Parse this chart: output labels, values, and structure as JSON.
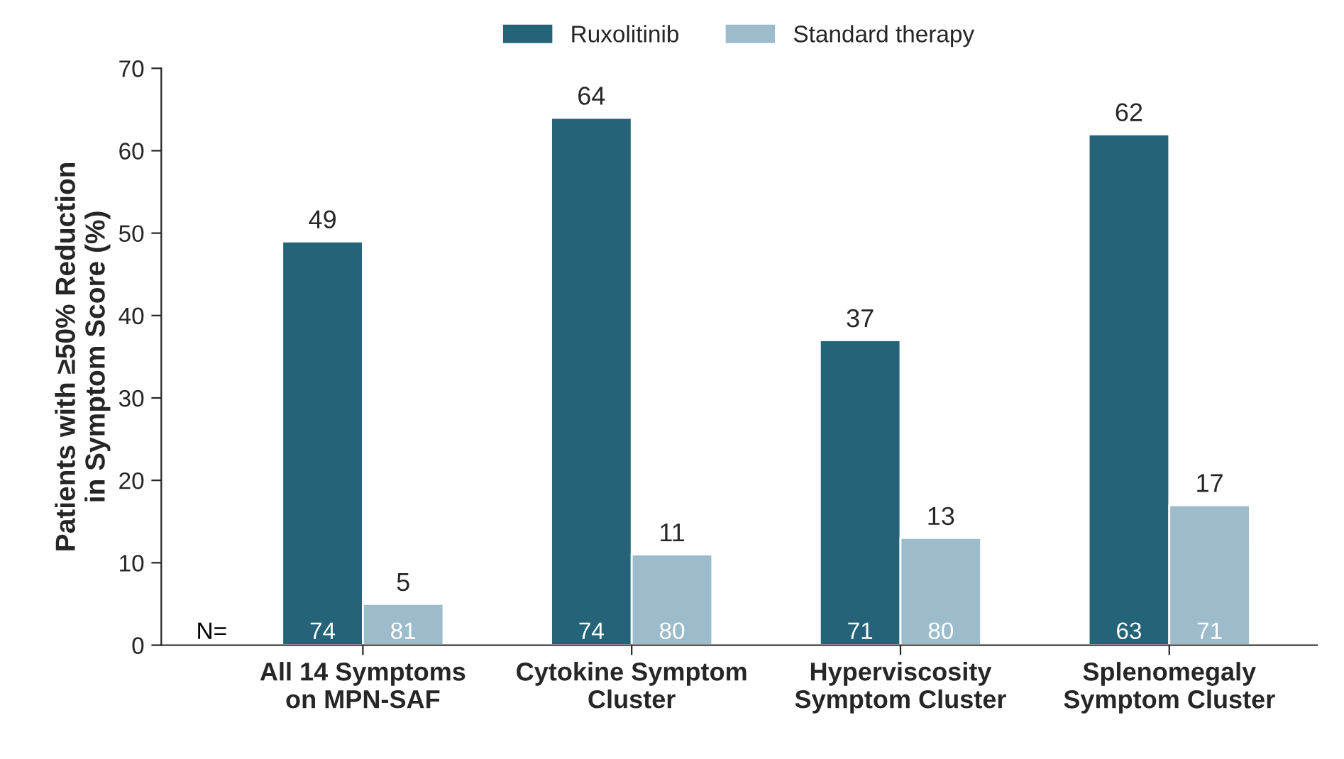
{
  "chart_data": {
    "type": "bar",
    "categories": [
      "All 14 Symptoms\non MPN-SAF",
      "Cytokine Symptom\nCluster",
      "Hyperviscosity\nSymptom Cluster",
      "Splenomegaly\nSymptom Cluster"
    ],
    "series": [
      {
        "name": "Ruxolitinib",
        "color": "#246378",
        "values": [
          49,
          64,
          37,
          62
        ]
      },
      {
        "name": "Standard therapy",
        "color": "#9dbccb",
        "values": [
          5,
          11,
          13,
          17
        ]
      }
    ],
    "ylabel": "Patients with ≥50% Reduction\nin Symptom Score (%)",
    "ylim": [
      0,
      70
    ],
    "yticks": [
      0,
      10,
      20,
      30,
      40,
      50,
      60,
      70
    ],
    "annotations": [
      "N=",
      "74",
      "74",
      "71",
      "63",
      "81",
      "80",
      "80",
      "71"
    ],
    "data_labels": true,
    "grid": false,
    "legend": "top"
  }
}
